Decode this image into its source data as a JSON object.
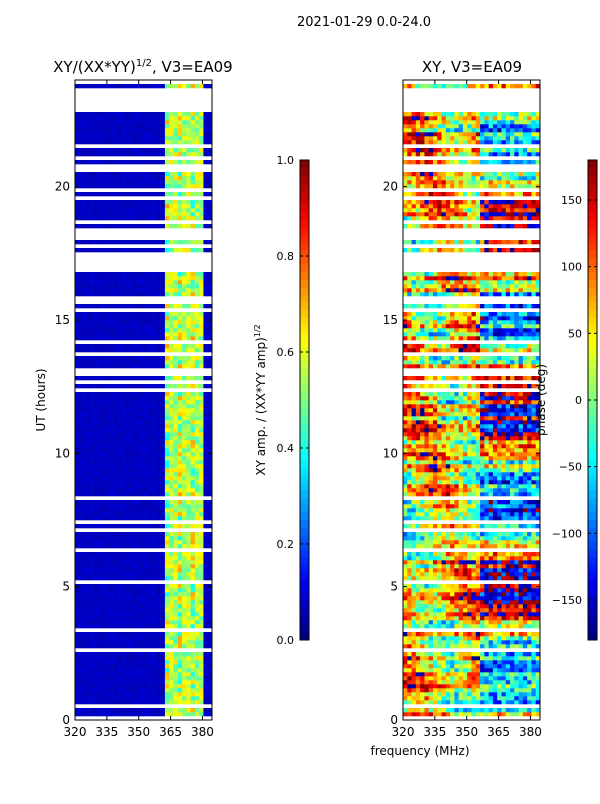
{
  "chart_data": [
    {
      "type": "heatmap",
      "title": "XY/(XX*YY)^1/2, V3=EA09",
      "title_main": "XY/(XX*YY)",
      "title_sup": "1/2",
      "title_tail": ", V3=EA09",
      "xlabel": "frequency (MHz)",
      "ylabel": "UT (hours)",
      "xlim": [
        320,
        384.5
      ],
      "ylim": [
        0,
        24
      ],
      "xticks": [
        "320",
        "335",
        "350",
        "365",
        "380"
      ],
      "xtick_values": [
        320,
        335,
        350,
        365,
        380
      ],
      "yticks": [
        "0",
        "5",
        "10",
        "15",
        "20"
      ],
      "ytick_values": [
        0,
        5,
        10,
        15,
        20
      ],
      "colormap": "jet",
      "colorbar": {
        "label": "XY amp. / (XX*YY amp)^1/2",
        "label_main": "XY amp. / (XX*YY amp)",
        "label_sup": "1/2",
        "range": [
          0.0,
          1.0
        ],
        "ticks": [
          "0.0",
          "0.2",
          "0.4",
          "0.6",
          "0.8",
          "1.0"
        ],
        "tick_values": [
          0.0,
          0.2,
          0.4,
          0.6,
          0.8,
          1.0
        ]
      },
      "background_value": 0.05,
      "bright_band_mhz": [
        362,
        381
      ],
      "bright_band_value": 0.55
    },
    {
      "type": "heatmap",
      "title": "XY, V3=EA09",
      "xlabel": "frequency (MHz)",
      "ylabel": "",
      "xlim": [
        320,
        384.5
      ],
      "ylim": [
        0,
        24
      ],
      "xticks": [
        "320",
        "335",
        "350",
        "365",
        "380"
      ],
      "xtick_values": [
        320,
        335,
        350,
        365,
        380
      ],
      "yticks": [
        "0",
        "5",
        "10",
        "15",
        "20"
      ],
      "ytick_values": [
        0,
        5,
        10,
        15,
        20
      ],
      "colormap": "jet",
      "colorbar": {
        "label": "phase (deg)",
        "range": [
          -180,
          180
        ],
        "ticks": [
          "−150",
          "−100",
          "−50",
          "0",
          "50",
          "100",
          "150"
        ],
        "tick_values": [
          -150,
          -100,
          -50,
          0,
          50,
          100,
          150
        ]
      }
    }
  ],
  "figure": {
    "suptitle": "2021-01-29 0.0-24.0",
    "shared_xlabel": "frequency (MHz)",
    "flagged_ut_ranges": [
      [
        22.8,
        23.7
      ],
      [
        18.05,
        18.3
      ],
      [
        16.8,
        17.5
      ],
      [
        23.85,
        23.95
      ]
    ]
  }
}
